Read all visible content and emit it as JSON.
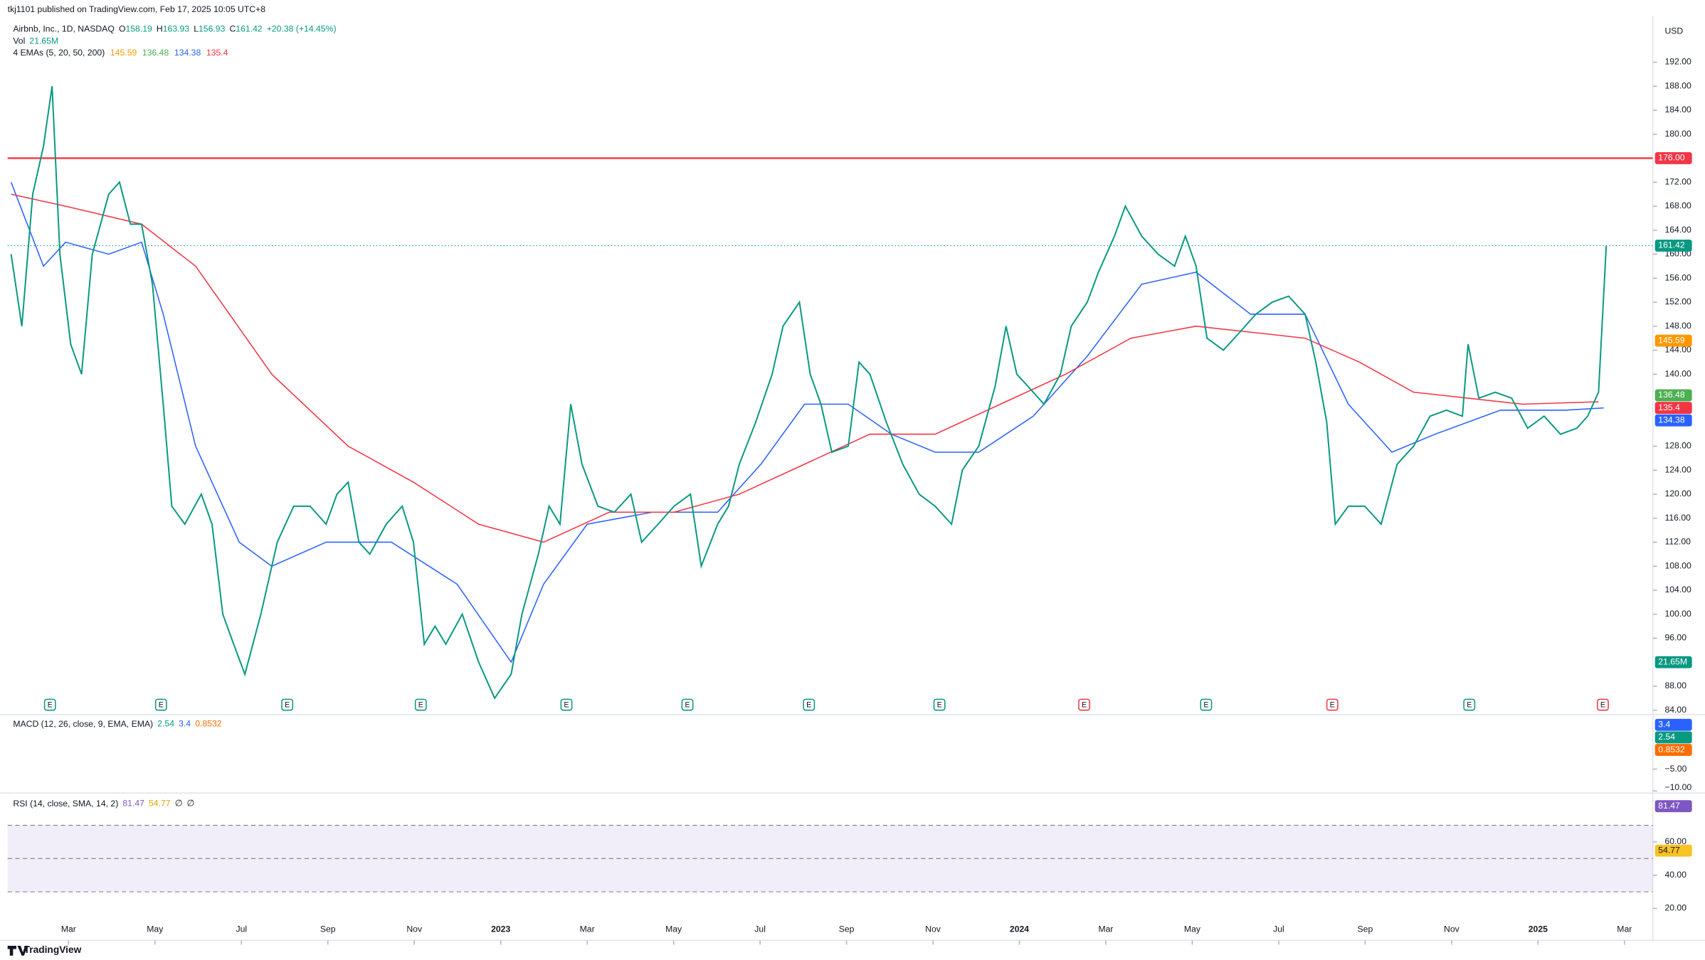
{
  "header": {
    "publisher": "tkj1101 published on TradingView.com, Feb 17, 2025 10:05 UTC+8",
    "symbol": "Airbnb, Inc., 1D, NASDAQ",
    "ohlc": [
      {
        "label": "O",
        "value": 158.19
      },
      {
        "label": "H",
        "value": 163.93
      },
      {
        "label": "L",
        "value": 156.93
      },
      {
        "label": "C",
        "value": 161.42
      }
    ],
    "change": "+20.38 (+14.45%)",
    "vol_label": "Vol",
    "vol": {
      "value": 21650000,
      "label": "21.65M"
    },
    "currency": "USD"
  },
  "chart_data": {
    "type": "line",
    "xlim": [
      0.59,
      38.53
    ],
    "xticks": [
      {
        "value": 2,
        "label": "Mar"
      },
      {
        "value": 4,
        "label": "May"
      },
      {
        "value": 6,
        "label": "Jul"
      },
      {
        "value": 8,
        "label": "Sep"
      },
      {
        "value": 10,
        "label": "Nov"
      },
      {
        "value": 12,
        "label": "2023"
      },
      {
        "value": 14,
        "label": "Mar"
      },
      {
        "value": 16,
        "label": "May"
      },
      {
        "value": 18,
        "label": "Jul"
      },
      {
        "value": 20,
        "label": "Sep"
      },
      {
        "value": 22,
        "label": "Nov"
      },
      {
        "value": 24,
        "label": "2024"
      },
      {
        "value": 26,
        "label": "Mar"
      },
      {
        "value": 28,
        "label": "May"
      },
      {
        "value": 30,
        "label": "Jul"
      },
      {
        "value": 32,
        "label": "Sep"
      },
      {
        "value": 34,
        "label": "Nov"
      },
      {
        "value": 36,
        "label": "2025"
      },
      {
        "value": 38,
        "label": "Mar"
      }
    ],
    "ylim": [
      83.27,
      199.64
    ],
    "yticks": [
      {
        "value": 84,
        "label": "84.00"
      },
      {
        "value": 88,
        "label": "88.00"
      },
      {
        "value": 96,
        "label": "96.00"
      },
      {
        "value": 100,
        "label": "100.00"
      },
      {
        "value": 104,
        "label": "104.00"
      },
      {
        "value": 108,
        "label": "108.00"
      },
      {
        "value": 112,
        "label": "112.00"
      },
      {
        "value": 116,
        "label": "116.00"
      },
      {
        "value": 120,
        "label": "120.00"
      },
      {
        "value": 124,
        "label": "124.00"
      },
      {
        "value": 128,
        "label": "128.00"
      },
      {
        "value": 140,
        "label": "140.00"
      },
      {
        "value": 144,
        "label": "144.00"
      },
      {
        "value": 148,
        "label": "148.00"
      },
      {
        "value": 152,
        "label": "152.00"
      },
      {
        "value": 156,
        "label": "156.00"
      },
      {
        "value": 160,
        "label": "160.00"
      },
      {
        "value": 164,
        "label": "164.00"
      },
      {
        "value": 168,
        "label": "168.00"
      },
      {
        "value": 172,
        "label": "172.00"
      },
      {
        "value": 180,
        "label": "180.00"
      },
      {
        "value": 184,
        "label": "184.00"
      },
      {
        "value": 188,
        "label": "188.00"
      },
      {
        "value": 192,
        "label": "192.00"
      }
    ],
    "price": {
      "color": "#089981",
      "x": [
        0.67,
        0.92,
        1.17,
        1.42,
        1.62,
        1.8,
        2.05,
        2.3,
        2.55,
        2.93,
        3.18,
        3.43,
        3.69,
        3.94,
        4.19,
        4.39,
        4.69,
        5.07,
        5.32,
        5.57,
        5.82,
        6.08,
        6.45,
        6.83,
        7.21,
        7.59,
        7.96,
        8.21,
        8.47,
        8.72,
        8.97,
        9.35,
        9.72,
        9.98,
        10.23,
        10.48,
        10.73,
        11.11,
        11.49,
        11.86,
        12.24,
        12.49,
        12.87,
        13.12,
        13.37,
        13.62,
        13.88,
        14.25,
        14.63,
        15.01,
        15.26,
        15.64,
        16.01,
        16.39,
        16.64,
        17.02,
        17.27,
        17.52,
        17.9,
        18.28,
        18.53,
        18.91,
        19.16,
        19.41,
        19.66,
        20.04,
        20.29,
        20.54,
        20.92,
        21.3,
        21.68,
        22.05,
        22.43,
        22.68,
        23.06,
        23.44,
        23.69,
        23.94,
        24.32,
        24.57,
        24.95,
        25.2,
        25.57,
        25.83,
        26.2,
        26.45,
        26.83,
        27.21,
        27.59,
        27.84,
        28.09,
        28.34,
        28.72,
        29.1,
        29.47,
        29.85,
        30.23,
        30.61,
        30.86,
        31.11,
        31.31,
        31.61,
        31.99,
        32.37,
        32.74,
        33.12,
        33.5,
        33.88,
        34.25,
        34.38,
        34.63,
        35.01,
        35.39,
        35.76,
        36.14,
        36.52,
        36.9,
        37.15,
        37.4,
        37.58
      ],
      "values": [
        160,
        148,
        170,
        178,
        188,
        160,
        145,
        140,
        160,
        170,
        172,
        165,
        165,
        155,
        135,
        118,
        115,
        120,
        115,
        100,
        95,
        90,
        100,
        112,
        118,
        118,
        115,
        120,
        122,
        112,
        110,
        115,
        118,
        112,
        95,
        98,
        95,
        100,
        92,
        86,
        90,
        100,
        110,
        118,
        115,
        135,
        125,
        118,
        117,
        120,
        112,
        115,
        118,
        120,
        108,
        115,
        118,
        125,
        132,
        140,
        148,
        152,
        140,
        135,
        127,
        128,
        142,
        140,
        132,
        125,
        120,
        118,
        115,
        124,
        128,
        138,
        148,
        140,
        137,
        135,
        140,
        148,
        152,
        157,
        163,
        168,
        163,
        160,
        158,
        163,
        158,
        146,
        144,
        147,
        150,
        152,
        153,
        150,
        142,
        132,
        115,
        118,
        118,
        115,
        125,
        128,
        133,
        134,
        133,
        145,
        136,
        137,
        136,
        131,
        133,
        130,
        131,
        133,
        137,
        161.42
      ]
    },
    "ema_label": "4 EMAs (5, 20, 50, 200)",
    "emas": [
      {
        "value": 145.59,
        "color": "#ff9800"
      },
      {
        "value": 136.48,
        "color": "#4caf50"
      },
      {
        "value": 134.38,
        "color": "#2962ff",
        "x": [
          0.67,
          1.42,
          1.93,
          2.93,
          3.69,
          4.19,
          4.94,
          5.95,
          6.7,
          7.96,
          9.47,
          10.99,
          12.24,
          12.99,
          14.0,
          15.51,
          17.02,
          18.02,
          19.03,
          20.04,
          21.04,
          22.05,
          23.06,
          24.32,
          25.57,
          26.83,
          28.09,
          29.35,
          30.61,
          31.61,
          32.62,
          33.62,
          35.13,
          36.64,
          37.52
        ],
        "values": [
          172,
          158,
          162,
          160,
          162,
          150,
          128,
          112,
          108,
          112,
          112,
          105,
          92,
          105,
          115,
          117,
          117,
          125,
          135,
          135,
          130,
          127,
          127,
          133,
          143,
          155,
          157,
          150,
          150,
          135,
          127,
          130,
          134,
          134,
          134.38
        ]
      },
      {
        "value": 135.4,
        "color": "#f23645",
        "x": [
          0.67,
          1.93,
          3.69,
          4.94,
          6.7,
          8.47,
          9.98,
          11.49,
          12.99,
          14.51,
          16.01,
          17.52,
          19.03,
          20.54,
          22.05,
          23.56,
          25.07,
          26.58,
          28.09,
          29.35,
          30.61,
          31.87,
          33.12,
          34.38,
          35.64,
          37.4
        ],
        "values": [
          170,
          168,
          165,
          158,
          140,
          128,
          122,
          115,
          112,
          117,
          117,
          120,
          125,
          130,
          130,
          135,
          140,
          146,
          148,
          147,
          146,
          142,
          137,
          136,
          135,
          135.4
        ]
      }
    ],
    "level": {
      "value": 176,
      "label": "176.00",
      "color": "#f23645"
    },
    "earnings": {
      "label": "E",
      "x": [
        1.57,
        4.14,
        7.06,
        10.15,
        13.52,
        16.32,
        19.13,
        22.15,
        25.5,
        28.32,
        31.24,
        34.41,
        37.5
      ],
      "miss": [
        8,
        10,
        12
      ]
    },
    "macd": {
      "label": "MACD (12, 26, close, 9, EMA, EMA)",
      "values": [
        {
          "value": 2.54,
          "color": "#089981"
        },
        {
          "value": 3.4,
          "color": "#2962ff"
        },
        {
          "value": 0.8532,
          "color": "#ff6d00"
        }
      ],
      "ylim": [
        -10.5,
        7.5
      ],
      "yticks": [
        {
          "value": -5,
          "label": "−5.00"
        },
        {
          "value": -10,
          "label": "−10.00"
        }
      ]
    },
    "rsi": {
      "label": "RSI (14, close, SMA, 14, 2)",
      "value": 81.47,
      "ma": 54.77,
      "extra": [
        "∅",
        "∅"
      ],
      "color": "#7e57c2",
      "ma_color": "#f7c325",
      "ylim": [
        0.82,
        89.34
      ],
      "bands": [
        70,
        50,
        30
      ],
      "yticks": [
        {
          "value": 60,
          "label": "60.00"
        },
        {
          "value": 40,
          "label": "40.00"
        },
        {
          "value": 20,
          "label": "20.00"
        }
      ]
    }
  },
  "footer": {
    "brand": "TradingView"
  }
}
